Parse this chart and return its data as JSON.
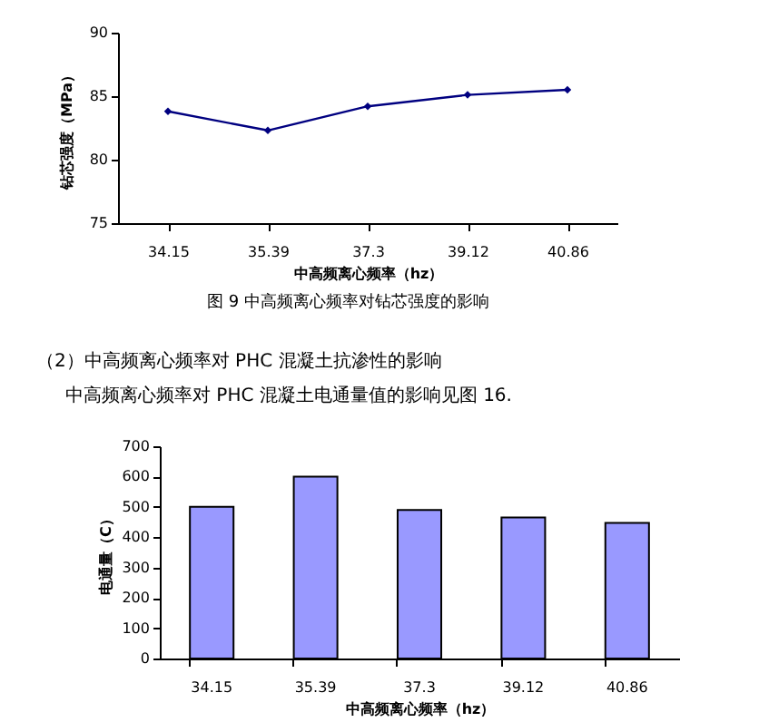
{
  "chart_data": [
    {
      "type": "line",
      "categories": [
        "34.15",
        "35.39",
        "37.3",
        "39.12",
        "40.86"
      ],
      "xlabel": "中高频离心频率（hz）",
      "ylabel": "钻芯强度（MPa）",
      "series": [
        {
          "color": "#000080",
          "values": [
            83.8,
            82.3,
            84.2,
            85.1,
            85.5
          ]
        }
      ],
      "ylim": [
        75,
        90
      ],
      "yticks": [
        75,
        80,
        85,
        90
      ],
      "marker": "diamond",
      "line_style": "solid",
      "legend": false,
      "grid": false,
      "annotations": [
        "图 9 中高频离心频率对钻芯强度的影响"
      ]
    },
    {
      "type": "bar",
      "categories": [
        "34.15",
        "35.39",
        "37.3",
        "39.12",
        "40.86"
      ],
      "xlabel": "中高频离心频率（hz）",
      "ylabel": "电通量（C）",
      "series": [
        {
          "color": "#9999ff",
          "values": [
            500,
            600,
            490,
            465,
            447
          ]
        }
      ],
      "ylim": [
        0,
        700
      ],
      "yticks": [
        0,
        100,
        200,
        300,
        400,
        500,
        600,
        700
      ],
      "legend": false,
      "grid": false,
      "annotations": [
        "（2）中高频离心频率对 PHC 混凝土抗渗性的影响",
        "中高频离心频率对 PHC 混凝土电通量值的影响见图 16."
      ]
    }
  ]
}
